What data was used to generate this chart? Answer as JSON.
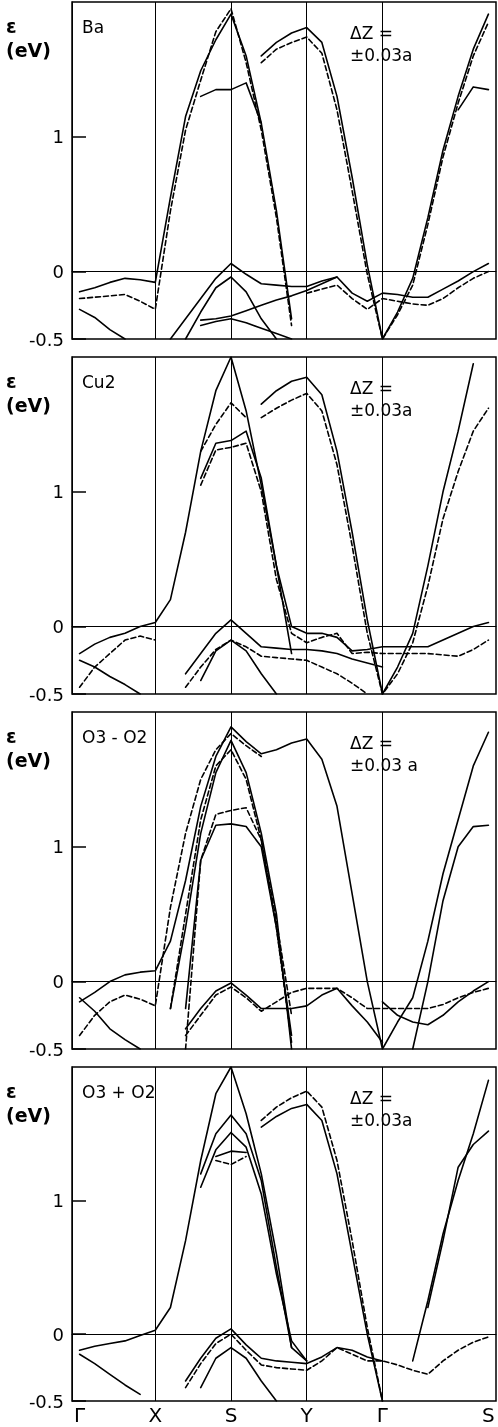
{
  "chart_data": [
    {
      "type": "line",
      "ylabel": "ε (eV)",
      "annotations": [
        "Ba",
        "ΔZ = ±0.03a"
      ],
      "categories": [
        "Γ",
        null,
        null,
        null,
        null,
        "X",
        null,
        null,
        null,
        null,
        "S",
        null,
        null,
        null,
        null,
        "Y",
        null,
        null,
        null,
        null,
        "Γ",
        null,
        null,
        null,
        null,
        null,
        null,
        "S"
      ],
      "ylim": [
        -0.5,
        2.0
      ],
      "yticks": [
        -0.5,
        0,
        1
      ],
      "tick_labels": "y",
      "grid": "x",
      "marker": "none",
      "ref_lines": [
        {
          "axis": "y",
          "value": 0
        }
      ],
      "series": [
        {
          "color": "#000000",
          "line_style": "solid",
          "values": [
            -0.15,
            -0.12,
            -0.08,
            -0.05,
            -0.06,
            -0.08,
            0.55,
            1.15,
            1.49,
            1.72,
            1.91,
            1.6,
            1.1,
            0.45,
            -0.35,
            null,
            null,
            null,
            null,
            null,
            null,
            null,
            null,
            null,
            null,
            null,
            null,
            null
          ]
        },
        {
          "color": "#000000",
          "line_style": "dashed",
          "values": [
            -0.2,
            -0.19,
            -0.18,
            -0.17,
            -0.22,
            -0.28,
            0.45,
            1.05,
            1.42,
            1.78,
            1.95,
            1.55,
            1.05,
            0.4,
            -0.4,
            null,
            null,
            null,
            null,
            null,
            null,
            null,
            null,
            null,
            null,
            null,
            null,
            null
          ]
        },
        {
          "color": "#000000",
          "line_style": "solid",
          "values": [
            null,
            null,
            null,
            null,
            null,
            null,
            null,
            null,
            null,
            null,
            null,
            null,
            1.6,
            1.7,
            1.77,
            1.81,
            1.7,
            1.3,
            0.7,
            0.05,
            -0.5,
            -0.3,
            -0.05,
            0.4,
            0.9,
            1.3,
            1.65,
            1.91
          ]
        },
        {
          "color": "#000000",
          "line_style": "dashed",
          "values": [
            null,
            null,
            null,
            null,
            null,
            null,
            null,
            null,
            null,
            null,
            null,
            null,
            1.55,
            1.65,
            1.7,
            1.74,
            1.62,
            1.2,
            0.6,
            -0.02,
            -0.5,
            -0.32,
            -0.1,
            0.35,
            0.85,
            1.25,
            1.6,
            1.85
          ]
        },
        {
          "color": "#000000",
          "line_style": "solid",
          "values": [
            null,
            null,
            null,
            null,
            null,
            null,
            null,
            null,
            1.3,
            1.35,
            1.35,
            1.4,
            1.1,
            null,
            null,
            null,
            null,
            null,
            null,
            null,
            null,
            null,
            null,
            null,
            null,
            1.2,
            1.37,
            1.35
          ]
        },
        {
          "color": "#000000",
          "line_style": "solid",
          "values": [
            null,
            null,
            null,
            null,
            null,
            null,
            -0.5,
            -0.35,
            -0.2,
            -0.05,
            0.06,
            -0.02,
            -0.09,
            -0.1,
            -0.11,
            -0.11,
            -0.07,
            -0.04,
            -0.16,
            -0.22,
            -0.16,
            -0.17,
            -0.19,
            -0.19,
            -0.13,
            -0.07,
            0.0,
            0.06
          ]
        },
        {
          "color": "#000000",
          "line_style": "solid",
          "values": [
            null,
            null,
            null,
            null,
            null,
            null,
            null,
            -0.5,
            -0.3,
            -0.12,
            -0.04,
            -0.15,
            -0.35,
            -0.5,
            null,
            null,
            null,
            null,
            null,
            null,
            null,
            null,
            null,
            null,
            null,
            null,
            null,
            null
          ]
        },
        {
          "color": "#000000",
          "line_style": "solid",
          "values": [
            null,
            null,
            null,
            null,
            null,
            null,
            null,
            null,
            -0.4,
            -0.37,
            -0.35,
            -0.38,
            -0.42,
            -0.46,
            -0.5,
            null,
            null,
            null,
            null,
            null,
            null,
            null,
            null,
            null,
            null,
            null,
            null,
            null
          ]
        },
        {
          "color": "#000000",
          "line_style": "solid",
          "values": [
            -0.28,
            -0.34,
            -0.43,
            -0.5,
            null,
            null,
            null,
            null,
            null,
            null,
            null,
            null,
            null,
            null,
            null,
            null,
            null,
            null,
            null,
            null,
            null,
            null,
            null,
            null,
            null,
            null,
            null,
            null
          ]
        },
        {
          "color": "#000000",
          "line_style": "solid",
          "values": [
            null,
            null,
            null,
            null,
            null,
            null,
            null,
            null,
            -0.36,
            -0.35,
            -0.33,
            -0.29,
            -0.25,
            -0.21,
            -0.18,
            -0.14,
            -0.09,
            -0.04,
            null,
            null,
            null,
            null,
            null,
            null,
            null,
            null,
            null,
            null
          ]
        },
        {
          "color": "#000000",
          "line_style": "dashed",
          "values": [
            null,
            null,
            null,
            null,
            null,
            null,
            null,
            null,
            null,
            null,
            null,
            null,
            null,
            null,
            null,
            -0.16,
            -0.13,
            -0.1,
            -0.2,
            -0.28,
            -0.2,
            -0.22,
            -0.24,
            -0.25,
            -0.2,
            -0.12,
            -0.05,
            0.0
          ]
        }
      ]
    },
    {
      "type": "line",
      "ylabel": "ε (eV)",
      "annotations": [
        "Cu2",
        "ΔZ = ±0.03a"
      ],
      "categories": [
        "Γ",
        null,
        null,
        null,
        null,
        "X",
        null,
        null,
        null,
        null,
        "S",
        null,
        null,
        null,
        null,
        "Y",
        null,
        null,
        null,
        null,
        "Γ",
        null,
        null,
        null,
        null,
        null,
        null,
        "S"
      ],
      "ylim": [
        -0.5,
        2.0
      ],
      "yticks": [
        -0.5,
        0,
        1
      ],
      "tick_labels": "y",
      "grid": "x",
      "marker": "none",
      "ref_lines": [
        {
          "axis": "y",
          "value": 0
        }
      ],
      "series": [
        {
          "color": "#000000",
          "line_style": "solid",
          "values": [
            -0.2,
            -0.13,
            -0.08,
            -0.05,
            0.0,
            0.03,
            0.2,
            0.7,
            1.3,
            1.75,
            2.0,
            1.6,
            1.05,
            0.45,
            -0.2,
            null,
            null,
            null,
            null,
            null,
            null,
            null,
            null,
            null,
            null,
            null,
            null,
            null
          ]
        },
        {
          "color": "#000000",
          "line_style": "solid",
          "values": [
            null,
            null,
            null,
            null,
            null,
            null,
            null,
            null,
            null,
            null,
            null,
            null,
            1.65,
            1.75,
            1.82,
            1.85,
            1.72,
            1.3,
            0.7,
            0.05,
            -0.5,
            -0.3,
            -0.05,
            0.45,
            1.0,
            1.45,
            1.95,
            null
          ]
        },
        {
          "color": "#000000",
          "line_style": "dashed",
          "values": [
            null,
            null,
            null,
            null,
            null,
            null,
            null,
            null,
            null,
            null,
            null,
            null,
            1.55,
            1.62,
            1.68,
            1.73,
            1.6,
            1.2,
            0.6,
            -0.05,
            -0.5,
            -0.35,
            -0.12,
            0.3,
            0.8,
            1.15,
            1.45,
            1.62
          ]
        },
        {
          "color": "#000000",
          "line_style": "solid",
          "values": [
            null,
            null,
            null,
            null,
            null,
            null,
            null,
            null,
            1.1,
            1.36,
            1.38,
            1.45,
            1.1,
            0.45,
            0.0,
            -0.05,
            -0.05,
            -0.08,
            -0.18,
            -0.17,
            -0.15,
            -0.15,
            -0.15,
            -0.15,
            -0.1,
            -0.05,
            0.0,
            0.03
          ]
        },
        {
          "color": "#000000",
          "line_style": "dashed",
          "values": [
            null,
            null,
            null,
            null,
            null,
            null,
            null,
            null,
            1.05,
            1.31,
            1.33,
            1.36,
            1.0,
            0.35,
            -0.05,
            -0.12,
            -0.08,
            -0.05,
            -0.2,
            -0.19,
            -0.2,
            -0.2,
            -0.2,
            -0.2,
            -0.21,
            -0.22,
            -0.17,
            -0.1
          ]
        },
        {
          "color": "#000000",
          "line_style": "dashed",
          "values": [
            null,
            null,
            null,
            null,
            null,
            null,
            null,
            null,
            1.3,
            1.5,
            1.66,
            1.55,
            null,
            null,
            null,
            null,
            null,
            null,
            null,
            null,
            null,
            null,
            null,
            null,
            null,
            null,
            null,
            null
          ]
        },
        {
          "color": "#000000",
          "line_style": "solid",
          "values": [
            null,
            null,
            null,
            null,
            null,
            null,
            null,
            -0.35,
            -0.2,
            -0.05,
            0.05,
            -0.05,
            -0.15,
            -0.16,
            -0.17,
            -0.17,
            -0.18,
            -0.2,
            -0.24,
            -0.27,
            -0.3,
            null,
            null,
            null,
            null,
            null,
            null,
            null
          ]
        },
        {
          "color": "#000000",
          "line_style": "dashed",
          "values": [
            null,
            null,
            null,
            null,
            null,
            null,
            null,
            -0.45,
            -0.3,
            -0.17,
            -0.1,
            -0.15,
            -0.22,
            -0.23,
            -0.24,
            -0.25,
            -0.3,
            -0.35,
            -0.42,
            -0.5,
            null,
            null,
            null,
            null,
            null,
            null,
            null,
            null
          ]
        },
        {
          "color": "#000000",
          "line_style": "dashed",
          "values": [
            -0.45,
            -0.3,
            -0.2,
            -0.1,
            -0.07,
            -0.1,
            null,
            null,
            null,
            null,
            null,
            null,
            null,
            null,
            null,
            null,
            null,
            null,
            null,
            null,
            null,
            null,
            null,
            null,
            null,
            null,
            null,
            null
          ]
        },
        {
          "color": "#000000",
          "line_style": "solid",
          "values": [
            null,
            null,
            null,
            null,
            null,
            null,
            null,
            null,
            -0.4,
            -0.18,
            -0.1,
            -0.18,
            -0.35,
            -0.5,
            null,
            null,
            null,
            null,
            null,
            null,
            null,
            null,
            null,
            null,
            null,
            null,
            null,
            null
          ]
        },
        {
          "color": "#000000",
          "line_style": "solid",
          "values": [
            -0.25,
            -0.3,
            -0.37,
            -0.43,
            -0.5,
            null,
            null,
            null,
            null,
            null,
            null,
            null,
            null,
            null,
            null,
            null,
            null,
            null,
            null,
            null,
            null,
            null,
            null,
            null,
            null,
            null,
            null,
            null
          ]
        }
      ]
    },
    {
      "type": "line",
      "ylabel": "ε (eV)",
      "annotations": [
        "O3 - O2",
        "ΔZ = ±0.03 a"
      ],
      "categories": [
        "Γ",
        null,
        null,
        null,
        null,
        "X",
        null,
        null,
        null,
        null,
        "S",
        null,
        null,
        null,
        null,
        "Y",
        null,
        null,
        null,
        null,
        "Γ",
        null,
        null,
        null,
        null,
        null,
        null,
        "S"
      ],
      "ylim": [
        -0.5,
        2.0
      ],
      "yticks": [
        -0.5,
        0,
        1
      ],
      "tick_labels": "y",
      "grid": "x",
      "marker": "none",
      "ref_lines": [
        {
          "axis": "y",
          "value": 0
        }
      ],
      "series": [
        {
          "color": "#000000",
          "line_style": "solid",
          "values": [
            -0.15,
            -0.08,
            0.0,
            0.05,
            0.07,
            0.08,
            0.3,
            0.75,
            1.3,
            1.67,
            1.89,
            1.78,
            1.69,
            1.72,
            1.77,
            1.8,
            1.65,
            1.3,
            0.65,
            0.0,
            -0.5,
            -0.3,
            -0.12,
            0.3,
            0.8,
            1.2,
            1.6,
            1.85
          ]
        },
        {
          "color": "#000000",
          "line_style": "dashed",
          "values": [
            -0.4,
            -0.25,
            -0.15,
            -0.1,
            -0.13,
            -0.18,
            0.55,
            1.1,
            1.5,
            1.72,
            1.84,
            1.75,
            1.67,
            null,
            null,
            null,
            null,
            null,
            null,
            null,
            null,
            null,
            null,
            null,
            null,
            null,
            null,
            null
          ]
        },
        {
          "color": "#000000",
          "line_style": "solid",
          "values": [
            null,
            null,
            null,
            null,
            null,
            null,
            -0.2,
            0.4,
            1.1,
            1.55,
            1.79,
            1.55,
            1.1,
            0.5,
            -0.5,
            null,
            null,
            null,
            null,
            null,
            null,
            null,
            null,
            null,
            null,
            null,
            null,
            null
          ]
        },
        {
          "color": "#000000",
          "line_style": "dashed",
          "values": [
            null,
            null,
            null,
            null,
            null,
            null,
            -0.2,
            0.5,
            1.2,
            1.6,
            1.72,
            1.5,
            1.05,
            0.45,
            -0.25,
            null,
            null,
            null,
            null,
            null,
            null,
            null,
            null,
            null,
            null,
            null,
            null,
            null
          ]
        },
        {
          "color": "#000000",
          "line_style": "solid",
          "values": [
            null,
            null,
            null,
            null,
            null,
            null,
            null,
            -0.2,
            0.9,
            1.16,
            1.17,
            1.15,
            1.0,
            0.4,
            -0.4,
            null,
            null,
            null,
            null,
            null,
            null,
            null,
            null,
            null,
            null,
            null,
            null,
            null
          ]
        },
        {
          "color": "#000000",
          "line_style": "dashed",
          "values": [
            null,
            null,
            null,
            null,
            null,
            null,
            null,
            -0.5,
            0.9,
            1.24,
            1.27,
            1.29,
            1.05,
            0.4,
            -0.45,
            null,
            null,
            null,
            null,
            null,
            null,
            null,
            null,
            null,
            null,
            null,
            null,
            null
          ]
        },
        {
          "color": "#000000",
          "line_style": "solid",
          "values": [
            null,
            null,
            null,
            null,
            null,
            null,
            null,
            null,
            null,
            null,
            null,
            null,
            null,
            null,
            null,
            null,
            null,
            null,
            null,
            null,
            null,
            null,
            -0.5,
            0.0,
            0.6,
            1.0,
            1.15,
            1.16
          ]
        },
        {
          "color": "#000000",
          "line_style": "solid",
          "values": [
            null,
            null,
            null,
            null,
            null,
            null,
            null,
            -0.35,
            -0.2,
            -0.07,
            -0.01,
            -0.1,
            -0.2,
            -0.2,
            -0.2,
            -0.18,
            -0.1,
            -0.05,
            -0.18,
            -0.3,
            -0.45,
            null,
            null,
            null,
            null,
            null,
            null,
            null
          ]
        },
        {
          "color": "#000000",
          "line_style": "dashed",
          "values": [
            null,
            null,
            null,
            null,
            null,
            null,
            null,
            -0.4,
            -0.25,
            -0.1,
            -0.04,
            -0.12,
            -0.22,
            -0.15,
            -0.08,
            -0.05,
            -0.05,
            -0.05,
            -0.12,
            -0.2,
            -0.2,
            -0.2,
            -0.2,
            -0.2,
            -0.17,
            -0.12,
            -0.08,
            -0.05
          ]
        },
        {
          "color": "#000000",
          "line_style": "solid",
          "values": [
            -0.12,
            -0.22,
            -0.35,
            -0.43,
            -0.5,
            null,
            null,
            null,
            null,
            null,
            null,
            null,
            null,
            null,
            null,
            null,
            null,
            null,
            null,
            null,
            null,
            null,
            null,
            null,
            null,
            null,
            null,
            null
          ]
        },
        {
          "color": "#000000",
          "line_style": "solid",
          "values": [
            null,
            null,
            null,
            null,
            null,
            null,
            null,
            null,
            null,
            null,
            null,
            null,
            null,
            null,
            null,
            null,
            null,
            null,
            null,
            null,
            -0.15,
            -0.25,
            -0.3,
            -0.32,
            -0.25,
            -0.15,
            -0.07,
            0.0
          ]
        }
      ]
    },
    {
      "type": "line",
      "ylabel": "ε (eV)",
      "annotations": [
        "O3 + O2",
        "ΔZ = ±0.03a"
      ],
      "categories": [
        "Γ",
        null,
        null,
        null,
        null,
        "X",
        null,
        null,
        null,
        null,
        "S",
        null,
        null,
        null,
        null,
        "Y",
        null,
        null,
        null,
        null,
        "Γ",
        null,
        null,
        null,
        null,
        null,
        null,
        "S"
      ],
      "ylim": [
        -0.5,
        2.0
      ],
      "yticks": [
        -0.5,
        0,
        1
      ],
      "grid": "x",
      "marker": "none",
      "ref_lines": [
        {
          "axis": "y",
          "value": 0
        }
      ],
      "series": [
        {
          "color": "#000000",
          "line_style": "solid",
          "values": [
            -0.12,
            -0.09,
            -0.07,
            -0.05,
            -0.01,
            0.03,
            0.2,
            0.7,
            1.3,
            1.8,
            2.0,
            1.65,
            1.2,
            0.6,
            -0.1,
            null,
            null,
            null,
            null,
            null,
            null,
            null,
            null,
            null,
            null,
            null,
            null,
            null
          ]
        },
        {
          "color": "#000000",
          "line_style": "solid",
          "values": [
            null,
            null,
            null,
            null,
            null,
            null,
            null,
            null,
            null,
            null,
            null,
            null,
            1.55,
            1.63,
            1.69,
            1.72,
            1.6,
            1.2,
            0.6,
            0.0,
            -0.5,
            null,
            null,
            null,
            null,
            null,
            null,
            null
          ]
        },
        {
          "color": "#000000",
          "line_style": "dashed",
          "values": [
            null,
            null,
            null,
            null,
            null,
            null,
            null,
            null,
            null,
            null,
            null,
            null,
            1.6,
            1.7,
            1.77,
            1.82,
            1.7,
            1.3,
            0.7,
            0.05,
            -0.5,
            null,
            null,
            null,
            null,
            null,
            null,
            null
          ]
        },
        {
          "color": "#000000",
          "line_style": "solid",
          "values": [
            null,
            null,
            null,
            null,
            null,
            null,
            null,
            null,
            null,
            null,
            null,
            null,
            null,
            null,
            null,
            null,
            null,
            null,
            null,
            null,
            null,
            null,
            -0.2,
            0.25,
            0.75,
            1.15,
            1.5,
            1.9
          ]
        },
        {
          "color": "#000000",
          "line_style": "solid",
          "values": [
            null,
            null,
            null,
            null,
            null,
            null,
            null,
            null,
            1.2,
            1.5,
            1.64,
            1.5,
            1.15,
            0.5,
            -0.1,
            -0.2,
            null,
            null,
            null,
            null,
            null,
            null,
            null,
            null,
            null,
            null,
            null,
            null
          ]
        },
        {
          "color": "#000000",
          "line_style": "solid",
          "values": [
            null,
            null,
            null,
            null,
            null,
            null,
            null,
            null,
            1.1,
            1.38,
            1.51,
            1.4,
            1.05,
            0.45,
            -0.05,
            -0.2,
            null,
            null,
            null,
            null,
            null,
            null,
            null,
            null,
            null,
            null,
            null,
            null
          ]
        },
        {
          "color": "#000000",
          "line_style": "solid",
          "values": [
            null,
            null,
            null,
            null,
            null,
            null,
            null,
            null,
            null,
            1.33,
            1.37,
            1.36,
            null,
            null,
            null,
            null,
            null,
            null,
            null,
            null,
            null,
            null,
            null,
            null,
            null,
            null,
            null,
            null
          ]
        },
        {
          "color": "#000000",
          "line_style": "dashed",
          "values": [
            null,
            null,
            null,
            null,
            null,
            null,
            null,
            null,
            null,
            1.3,
            1.27,
            1.33,
            null,
            null,
            null,
            null,
            null,
            null,
            null,
            null,
            null,
            null,
            null,
            null,
            null,
            null,
            null,
            null
          ]
        },
        {
          "color": "#000000",
          "line_style": "solid",
          "values": [
            null,
            null,
            null,
            null,
            null,
            null,
            null,
            -0.35,
            -0.18,
            -0.03,
            0.04,
            -0.08,
            -0.18,
            -0.2,
            -0.21,
            -0.22,
            -0.17,
            -0.1,
            -0.12,
            -0.17,
            -0.2,
            null,
            null,
            null,
            null,
            null,
            null,
            null
          ]
        },
        {
          "color": "#000000",
          "line_style": "dashed",
          "values": [
            null,
            null,
            null,
            null,
            null,
            null,
            null,
            -0.4,
            -0.22,
            -0.07,
            0.0,
            -0.12,
            -0.23,
            -0.25,
            -0.26,
            -0.27,
            -0.2,
            -0.1,
            -0.15,
            -0.2,
            -0.2,
            -0.23,
            -0.27,
            -0.3,
            -0.2,
            -0.12,
            -0.06,
            -0.02
          ]
        },
        {
          "color": "#000000",
          "line_style": "solid",
          "values": [
            null,
            null,
            null,
            null,
            null,
            null,
            null,
            null,
            -0.4,
            -0.18,
            -0.1,
            -0.18,
            -0.35,
            -0.5,
            null,
            null,
            null,
            null,
            null,
            null,
            null,
            null,
            null,
            null,
            null,
            null,
            null,
            null
          ]
        },
        {
          "color": "#000000",
          "line_style": "solid",
          "values": [
            null,
            null,
            null,
            null,
            null,
            null,
            null,
            null,
            null,
            null,
            null,
            null,
            null,
            null,
            null,
            null,
            null,
            null,
            null,
            null,
            null,
            null,
            null,
            0.2,
            0.7,
            1.25,
            1.42,
            1.52
          ]
        },
        {
          "color": "#000000",
          "line_style": "solid",
          "values": [
            -0.15,
            -0.22,
            -0.3,
            -0.38,
            -0.45,
            null,
            null,
            null,
            null,
            null,
            null,
            null,
            null,
            null,
            null,
            null,
            null,
            null,
            null,
            null,
            null,
            null,
            null,
            null,
            null,
            null,
            null,
            null
          ]
        }
      ]
    }
  ]
}
